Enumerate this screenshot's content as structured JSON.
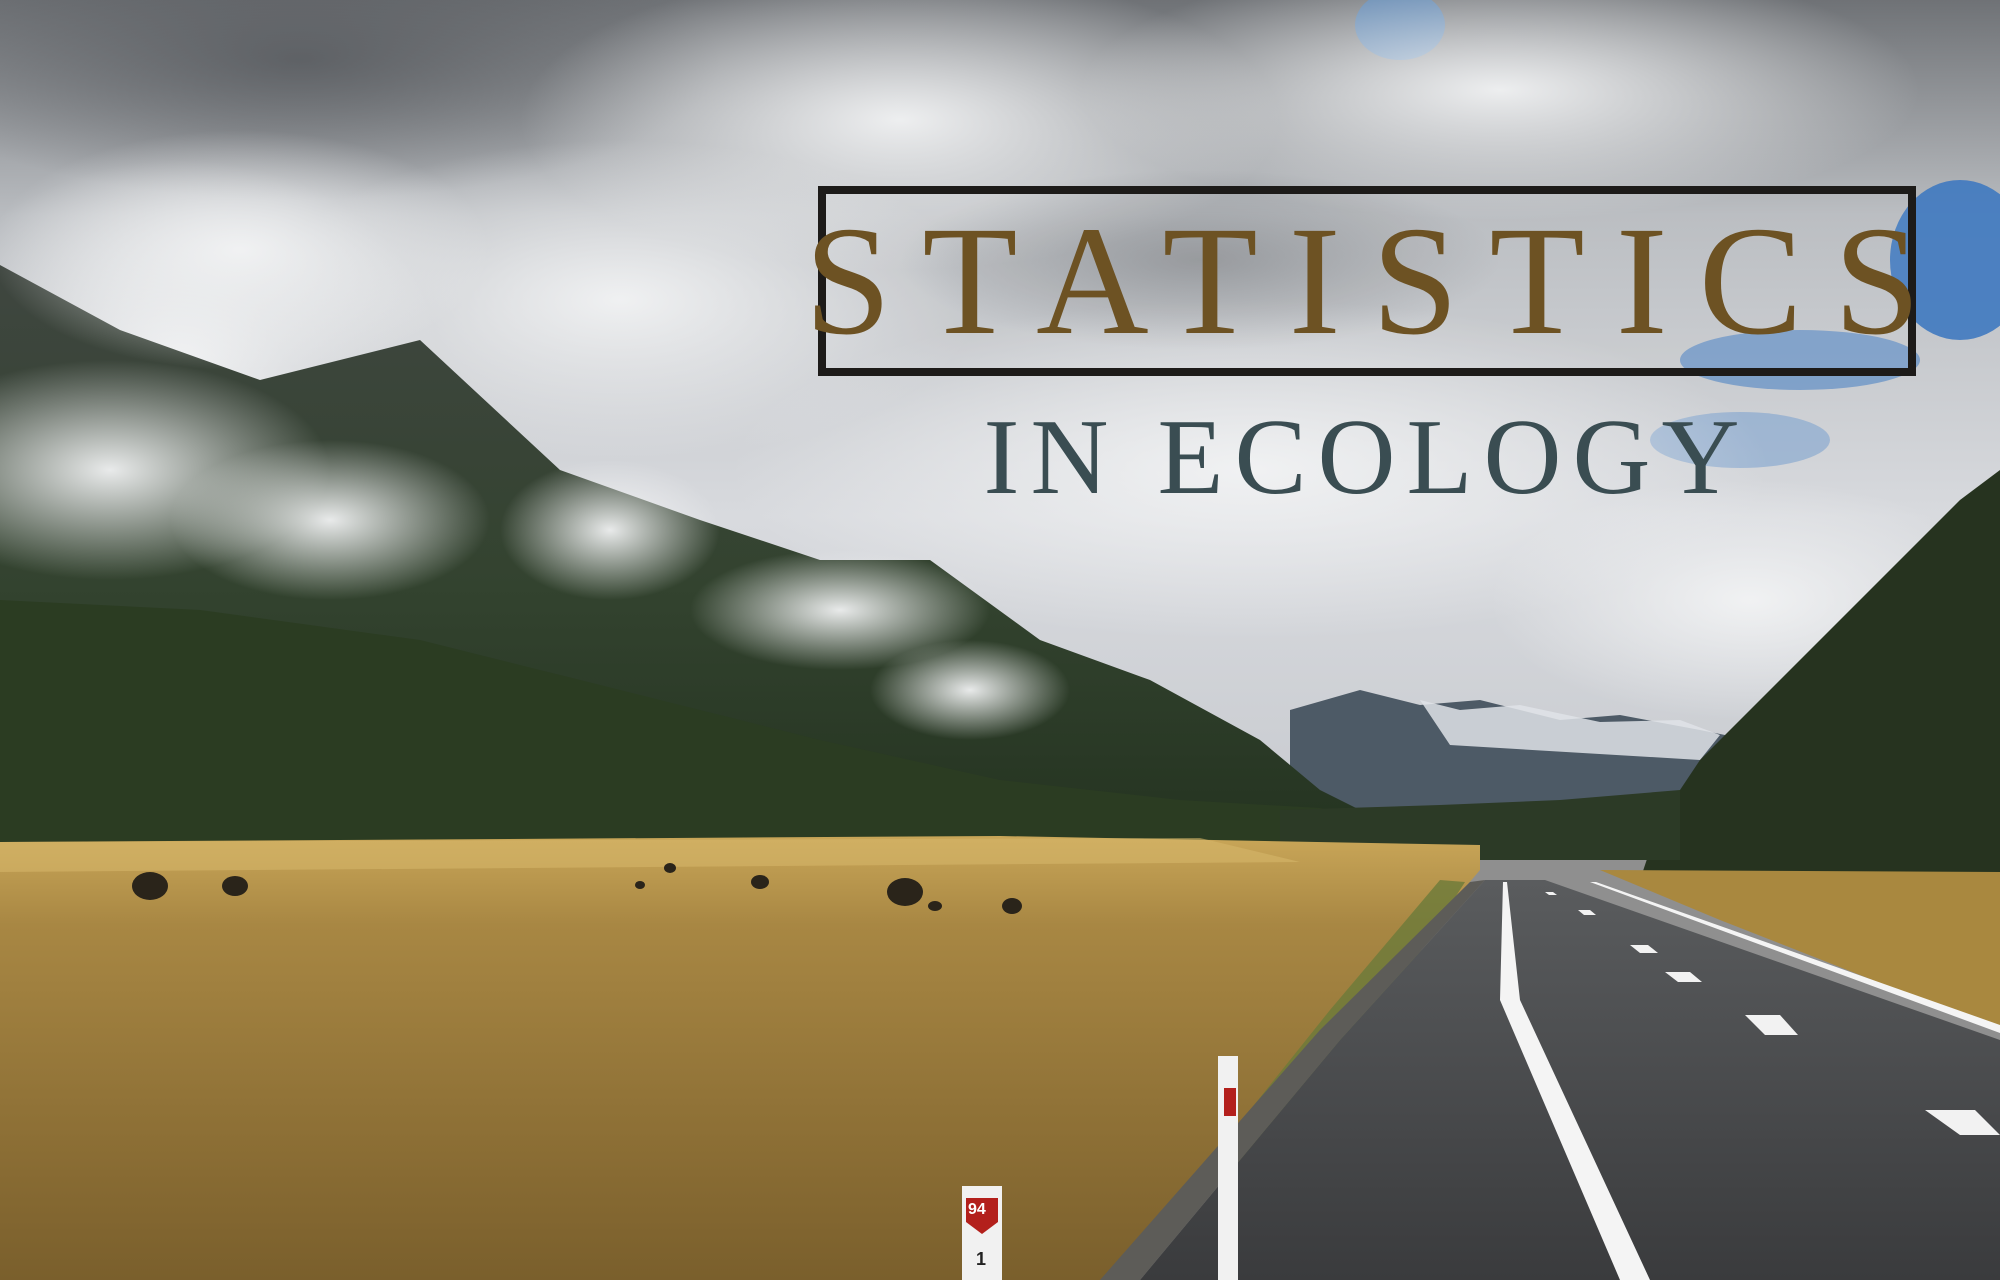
{
  "title": {
    "line1": "STATISTICS",
    "line2": "IN ECOLOGY"
  },
  "road_markers": {
    "route_number": "94",
    "post_digit": "1"
  },
  "colors": {
    "title_line1": "#6d5223",
    "title_line2": "#3a4d52",
    "title_frame": "#1d1b19",
    "sky": "#c9ccd0",
    "forest": "#2c3d24",
    "grassland": "#a88842",
    "road": "#4a4b4c"
  }
}
